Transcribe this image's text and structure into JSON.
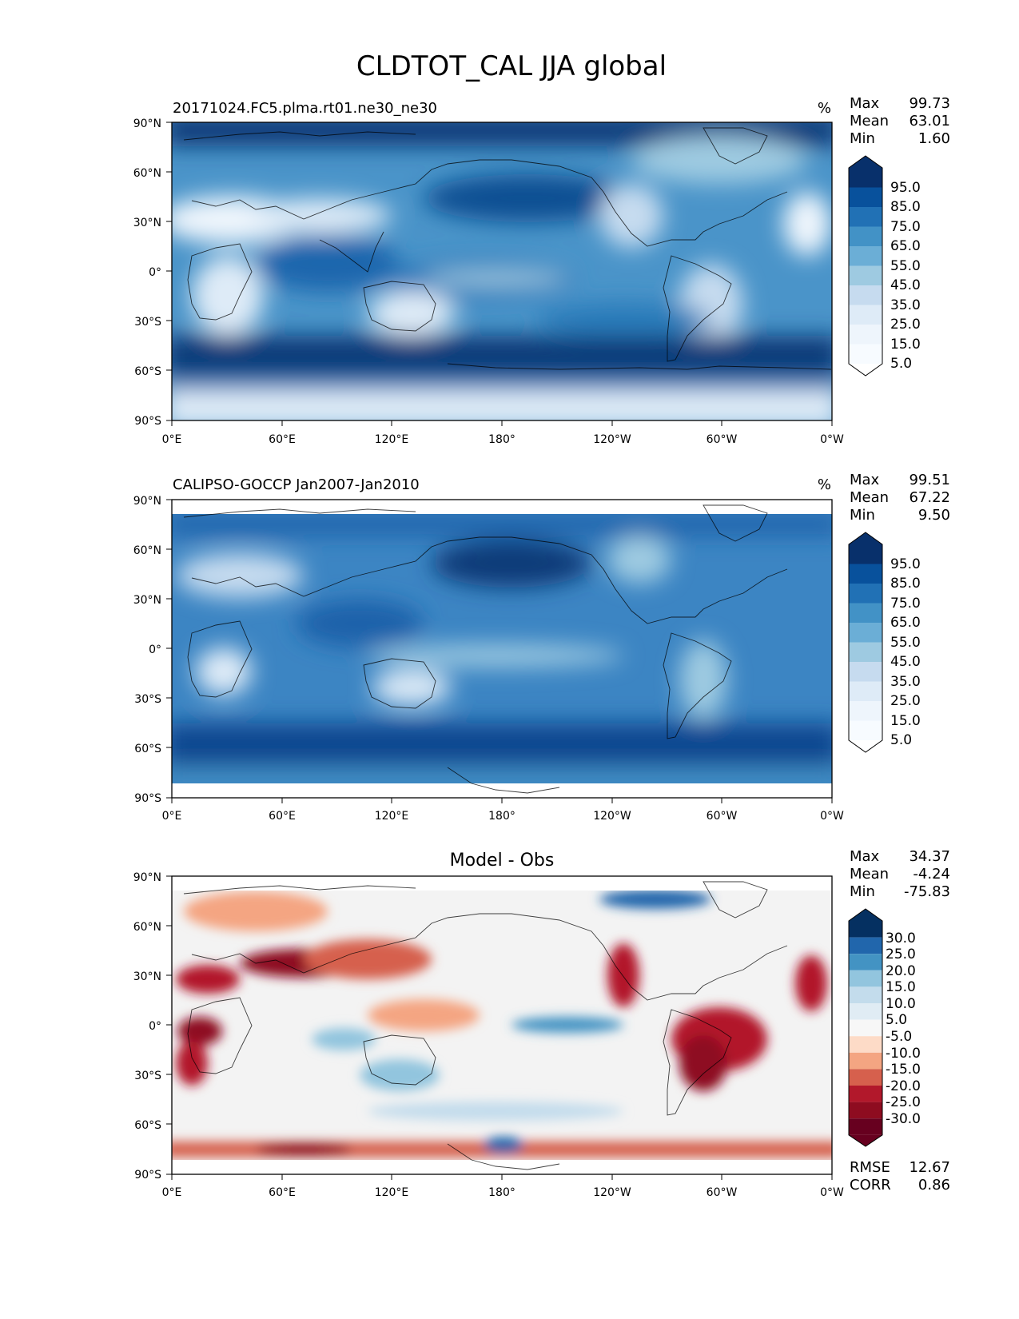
{
  "figure": {
    "title": "CLDTOT_CAL JJA global"
  },
  "axes": {
    "lat_ticks": [
      "90°N",
      "60°N",
      "30°N",
      "0°",
      "30°S",
      "60°S",
      "90°S"
    ],
    "lon_ticks": [
      "0°E",
      "60°E",
      "120°E",
      "180°",
      "120°W",
      "60°W",
      "0°W"
    ]
  },
  "panels": [
    {
      "id": "model",
      "left_title": "20171024.FC5.plma.rt01.ne30_ne30",
      "center_title": "",
      "units": "%",
      "stats": [
        {
          "label": "Max",
          "value": "99.73"
        },
        {
          "label": "Mean",
          "value": "63.01"
        },
        {
          "label": "Min",
          "value": "1.60"
        }
      ],
      "colorbar": {
        "ticks": [
          "95.0",
          "85.0",
          "75.0",
          "65.0",
          "55.0",
          "45.0",
          "35.0",
          "25.0",
          "15.0",
          "5.0"
        ],
        "colors_top_to_bottom": [
          "#08306b",
          "#08519c",
          "#2171b5",
          "#4292c6",
          "#6baed6",
          "#9ecae1",
          "#c6dbef",
          "#deebf7",
          "#eef5fc",
          "#f7fbff"
        ]
      },
      "extra_stats": []
    },
    {
      "id": "obs",
      "left_title": "CALIPSO-GOCCP Jan2007-Jan2010",
      "center_title": "",
      "units": "%",
      "stats": [
        {
          "label": "Max",
          "value": "99.51"
        },
        {
          "label": "Mean",
          "value": "67.22"
        },
        {
          "label": "Min",
          "value": "9.50"
        }
      ],
      "colorbar": {
        "ticks": [
          "95.0",
          "85.0",
          "75.0",
          "65.0",
          "55.0",
          "45.0",
          "35.0",
          "25.0",
          "15.0",
          "5.0"
        ],
        "colors_top_to_bottom": [
          "#08306b",
          "#08519c",
          "#2171b5",
          "#4292c6",
          "#6baed6",
          "#9ecae1",
          "#c6dbef",
          "#deebf7",
          "#eef5fc",
          "#f7fbff"
        ]
      },
      "extra_stats": []
    },
    {
      "id": "diff",
      "left_title": "",
      "center_title": "Model - Obs",
      "units": "",
      "stats": [
        {
          "label": "Max",
          "value": "34.37"
        },
        {
          "label": "Mean",
          "value": "-4.24"
        },
        {
          "label": "Min",
          "value": "-75.83"
        }
      ],
      "colorbar": {
        "ticks": [
          "30.0",
          "25.0",
          "20.0",
          "15.0",
          "10.0",
          "5.0",
          "-5.0",
          "-10.0",
          "-15.0",
          "-20.0",
          "-25.0",
          "-30.0"
        ],
        "colors_top_to_bottom": [
          "#053061",
          "#2166ac",
          "#4393c3",
          "#92c5de",
          "#c3dcec",
          "#e0ecf4",
          "#f7f7f7",
          "#fddbc7",
          "#f4a582",
          "#d6604d",
          "#b2182b",
          "#8e0c20",
          "#67001f"
        ]
      },
      "extra_stats": [
        {
          "label": "RMSE",
          "value": "12.67"
        },
        {
          "label": "CORR",
          "value": "0.86"
        }
      ]
    }
  ]
}
